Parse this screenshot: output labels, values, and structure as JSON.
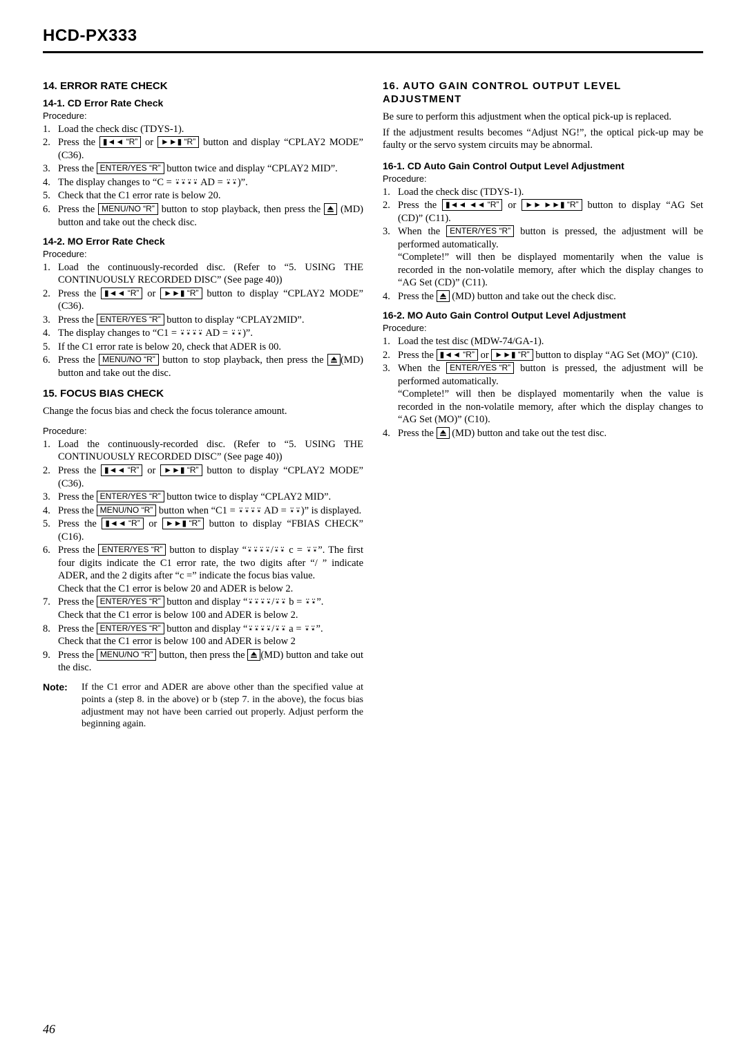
{
  "header": {
    "model": "HCD-PX333"
  },
  "left": {
    "s14": {
      "title": "14. ERROR RATE CHECK",
      "s141": {
        "title": "14-1. CD Error Rate Check",
        "proc": "Procedure:",
        "items": [
          "Load the check disc (TDYS-1).",
          "Press the {PREV_R} or {NEXT_R} button and display “CPLAY2 MODE” (C36).",
          "Press the {ENTER_YES_R} button twice and display “CPLAY2 MID”.",
          "The display changes to “C = ⍣⍣⍣⍣ AD = ⍣⍣)”.",
          "Check that the C1 error rate is below 20.",
          "Press the {MENU_NO_R} button to stop playback, then press the {EJECT} (MD) button and take out the check disc."
        ]
      },
      "s142": {
        "title": "14-2. MO Error Rate Check",
        "proc": "Procedure:",
        "items": [
          "Load the continuously-recorded disc.  (Refer to “5.  USING THE CONTINUOUSLY RECORDED DISC” (See page 40))",
          "Press the {PREV_R} or {NEXT_R} button to display “CPLAY2 MODE” (C36).",
          "Press the {ENTER_YES_R} button to display “CPLAY2MID”.",
          "The display changes to “C1 = ⍣⍣⍣⍣ AD = ⍣⍣)”.",
          "If the C1 error rate is below 20, check that ADER is 00.",
          "Press the {MENU_NO_R} button to stop playback, then press the {EJECT}(MD) button and take out the disc."
        ]
      }
    },
    "s15": {
      "title": "15. FOCUS BIAS CHECK",
      "intro": "Change the focus bias and check the focus tolerance amount.",
      "proc": "Procedure:",
      "items": [
        "Load the continuously-recorded disc.  (Refer to “5.  USING THE CONTINUOUSLY RECORDED DISC” (See page 40))",
        "Press the {PREV_R} or {NEXT_R} button to display “CPLAY2 MODE” (C36).",
        "Press the {ENTER_YES_R} button twice to display “CPLAY2 MID”.",
        "Press the {MENU_NO_R} button when “C1 = ⍣⍣⍣⍣ AD = ⍣⍣)” is displayed.",
        "Press the {PREV_R} or {NEXT_R} button to display “FBIAS CHECK” (C16).",
        "Press the {ENTER_YES_R} button to display “⍣⍣⍣⍣/⍣⍣ c = ⍣⍣”. The first four digits indicate the C1 error rate, the two digits after “/ ” indicate ADER, and the 2 digits after “c =” indicate the focus bias value.\nCheck that the C1 error is below 20 and ADER is below 2.",
        "Press the {ENTER_YES_R} button and display “⍣⍣⍣⍣/⍣⍣ b = ⍣⍣”.\nCheck that the C1 error is below 100 and ADER is below 2.",
        "Press the {ENTER_YES_R} button and display “⍣⍣⍣⍣/⍣⍣ a = ⍣⍣”.\nCheck that the C1 error is below 100 and ADER is below 2",
        "Press the {MENU_NO_R} button, then press the {EJECT}(MD) button and take out the disc."
      ],
      "note_label": "Note:",
      "note_text": "If the C1 error and ADER are above other than the specified value at points a (step 8. in the above) or b (step 7. in the above), the focus bias adjustment may not have been carried out properly. Adjust perform the beginning again."
    }
  },
  "right": {
    "s16": {
      "title": "16. AUTO GAIN CONTROL OUTPUT LEVEL ADJUSTMENT",
      "p1": "Be sure to perform this adjustment when the optical pick-up is replaced.",
      "p2": "If the adjustment results becomes “Adjust NG!”, the optical pick-up may be faulty or the servo system circuits may be abnormal.",
      "s161": {
        "title": "16-1. CD Auto Gain Control Output Level Adjustment",
        "proc": "Procedure:",
        "items": [
          "Load the check disc (TDYS-1).",
          "Press the {PREV_REW_R} or {FF_NEXT_R} button to display “AG Set (CD)” (C11).",
          "When the {ENTER_YES_R} button is pressed, the adjustment will be performed automatically.\n“Complete!” will then be displayed momentarily when the value is recorded in the non-volatile memory, after which the display changes to “AG Set (CD)” (C11).",
          "Press the {EJECT} (MD) button and take out the check disc."
        ]
      },
      "s162": {
        "title": "16-2. MO Auto Gain Control Output Level Adjustment",
        "proc": "Procedure:",
        "items": [
          "Load the test disc (MDW-74/GA-1).",
          "Press the {PREV_R} or {NEXT_R} button to display “AG Set (MO)” (C10).",
          "When the {ENTER_YES_R} button is pressed, the adjustment will be performed automatically.\n“Complete!” will then be displayed momentarily when the value is recorded in the non-volatile memory, after which the display changes to “AG Set (MO)” (C10).",
          "Press the {EJECT} (MD) button and take out the test disc."
        ]
      }
    }
  },
  "btn": {
    "prev_r": "▮◄◄ “R”",
    "next_r": "►►▮ “R”",
    "prev_rew_r": "▮◄◄ ◄◄ “R”",
    "ff_next_r": "►► ►►▮ “R”",
    "enter_yes_r": "ENTER/YES “R”",
    "menu_no_r": "MENU/NO “R”"
  },
  "page": "46"
}
